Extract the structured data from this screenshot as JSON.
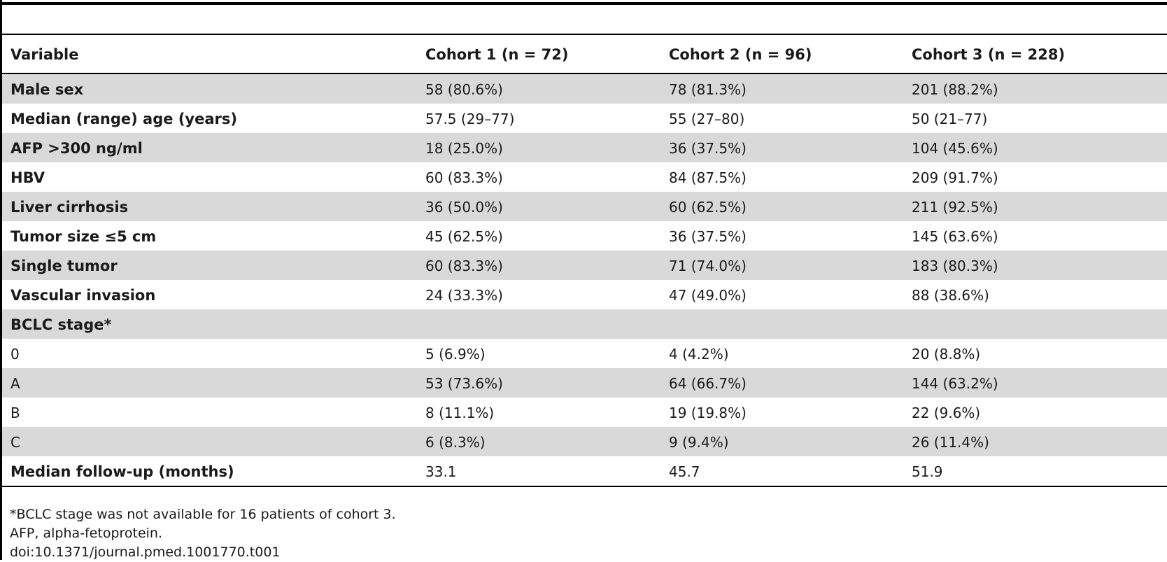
{
  "table": {
    "headers": [
      "Variable",
      "Cohort 1 (n = 72)",
      "Cohort 2 (n = 96)",
      "Cohort 3 (n = 228)"
    ],
    "rows": [
      {
        "variable": "Male sex",
        "c1": "58 (80.6%)",
        "c2": "78 (81.3%)",
        "c3": "201 (88.2%)"
      },
      {
        "variable": "Median (range) age (years)",
        "c1": "57.5 (29–77)",
        "c2": "55 (27–80)",
        "c3": "50 (21–77)"
      },
      {
        "variable": "AFP >300 ng/ml",
        "c1": "18 (25.0%)",
        "c2": "36 (37.5%)",
        "c3": "104 (45.6%)"
      },
      {
        "variable": "HBV",
        "c1": "60 (83.3%)",
        "c2": "84 (87.5%)",
        "c3": "209 (91.7%)"
      },
      {
        "variable": "Liver cirrhosis",
        "c1": "36 (50.0%)",
        "c2": "60 (62.5%)",
        "c3": "211 (92.5%)"
      },
      {
        "variable": "Tumor size ≤5 cm",
        "c1": "45 (62.5%)",
        "c2": "36 (37.5%)",
        "c3": "145 (63.6%)"
      },
      {
        "variable": "Single tumor",
        "c1": "60 (83.3%)",
        "c2": "71 (74.0%)",
        "c3": "183 (80.3%)"
      },
      {
        "variable": "Vascular invasion",
        "c1": "24 (33.3%)",
        "c2": "47 (49.0%)",
        "c3": "88 (38.6%)"
      },
      {
        "variable": "BCLC stage*",
        "c1": "",
        "c2": "",
        "c3": ""
      },
      {
        "variable": "0",
        "c1": "5 (6.9%)",
        "c2": "4 (4.2%)",
        "c3": "20 (8.8%)"
      },
      {
        "variable": "A",
        "c1": "53 (73.6%)",
        "c2": "64 (66.7%)",
        "c3": "144 (63.2%)"
      },
      {
        "variable": "B",
        "c1": "8 (11.1%)",
        "c2": "19 (19.8%)",
        "c3": "22 (9.6%)"
      },
      {
        "variable": "C",
        "c1": "6 (8.3%)",
        "c2": "9 (9.4%)",
        "c3": "26 (11.4%)"
      },
      {
        "variable": "Median follow-up (months)",
        "c1": "33.1",
        "c2": "45.7",
        "c3": "51.9"
      }
    ]
  },
  "footnotes": [
    "*BCLC stage was not available for 16 patients of cohort 3.",
    "AFP, alpha-fetoprotein.",
    "doi:10.1371/journal.pmed.1001770.t001"
  ]
}
